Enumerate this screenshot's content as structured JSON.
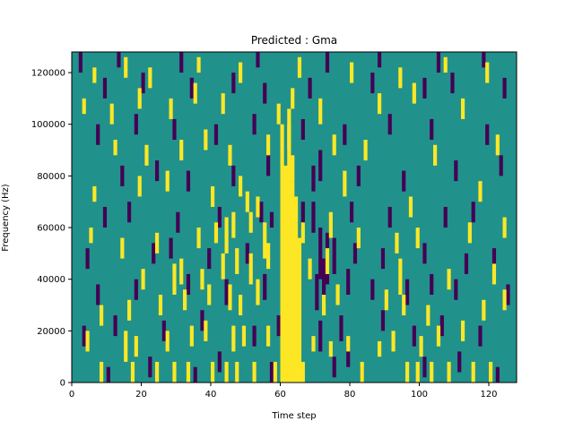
{
  "chart_data": {
    "type": "heatmap",
    "title": "Predicted : Gma",
    "xlabel": "Time step",
    "ylabel": "Frequency (Hz)",
    "xlim": [
      0,
      128
    ],
    "ylim": [
      0,
      128000
    ],
    "x_ticks": [
      0,
      20,
      40,
      60,
      80,
      100,
      120
    ],
    "y_ticks": [
      0,
      20000,
      40000,
      60000,
      80000,
      100000,
      120000
    ],
    "n_time_steps": 128,
    "n_freq_bins": 128,
    "colormap": "viridis",
    "background_level": "mid",
    "colors": {
      "low": "#440154",
      "mid": "#21918c",
      "high": "#fde725"
    },
    "grid": false,
    "colorbar": false,
    "high_cells": [
      [
        8,
        0,
        8
      ],
      [
        17,
        0,
        8
      ],
      [
        24,
        0,
        8
      ],
      [
        29,
        0,
        8
      ],
      [
        33,
        0,
        8
      ],
      [
        40,
        0,
        8
      ],
      [
        44,
        0,
        8
      ],
      [
        47,
        0,
        8
      ],
      [
        52,
        0,
        8
      ],
      [
        58,
        0,
        8
      ],
      [
        61,
        0,
        8
      ],
      [
        66,
        0,
        8
      ],
      [
        83,
        0,
        8
      ],
      [
        96,
        0,
        8
      ],
      [
        99,
        0,
        8
      ],
      [
        103,
        0,
        8
      ],
      [
        108,
        0,
        8
      ],
      [
        115,
        0,
        8
      ],
      [
        120,
        0,
        8
      ],
      [
        4,
        12,
        20
      ],
      [
        15,
        8,
        20
      ],
      [
        18,
        10,
        18
      ],
      [
        27,
        12,
        20
      ],
      [
        34,
        14,
        22
      ],
      [
        38,
        16,
        24
      ],
      [
        46,
        12,
        22
      ],
      [
        49,
        14,
        22
      ],
      [
        56,
        14,
        22
      ],
      [
        69,
        12,
        18
      ],
      [
        74,
        10,
        16
      ],
      [
        79,
        12,
        18
      ],
      [
        88,
        10,
        16
      ],
      [
        92,
        12,
        20
      ],
      [
        100,
        10,
        18
      ],
      [
        105,
        14,
        22
      ],
      [
        112,
        16,
        24
      ],
      [
        8,
        22,
        30
      ],
      [
        16,
        24,
        32
      ],
      [
        25,
        26,
        34
      ],
      [
        32,
        28,
        36
      ],
      [
        39,
        30,
        38
      ],
      [
        45,
        28,
        38
      ],
      [
        48,
        26,
        34
      ],
      [
        53,
        30,
        40
      ],
      [
        72,
        26,
        34
      ],
      [
        76,
        30,
        38
      ],
      [
        90,
        28,
        36
      ],
      [
        95,
        26,
        34
      ],
      [
        102,
        22,
        30
      ],
      [
        118,
        24,
        32
      ],
      [
        124,
        28,
        36
      ],
      [
        20,
        36,
        44
      ],
      [
        29,
        34,
        46
      ],
      [
        31,
        38,
        48
      ],
      [
        37,
        36,
        44
      ],
      [
        43,
        40,
        50
      ],
      [
        47,
        42,
        52
      ],
      [
        51,
        38,
        50
      ],
      [
        56,
        44,
        54
      ],
      [
        68,
        40,
        48
      ],
      [
        73,
        42,
        52
      ],
      [
        94,
        34,
        48
      ],
      [
        108,
        36,
        44
      ],
      [
        121,
        38,
        46
      ],
      [
        5,
        54,
        60
      ],
      [
        14,
        48,
        56
      ],
      [
        24,
        50,
        58
      ],
      [
        36,
        52,
        60
      ],
      [
        41,
        54,
        62
      ],
      [
        44,
        50,
        64
      ],
      [
        46,
        56,
        66
      ],
      [
        51,
        58,
        66
      ],
      [
        55,
        48,
        62
      ],
      [
        66,
        54,
        62
      ],
      [
        74,
        56,
        66
      ],
      [
        82,
        52,
        60
      ],
      [
        93,
        50,
        58
      ],
      [
        99,
        52,
        60
      ],
      [
        114,
        54,
        62
      ],
      [
        124,
        56,
        64
      ],
      [
        6,
        70,
        76
      ],
      [
        19,
        72,
        80
      ],
      [
        27,
        74,
        82
      ],
      [
        40,
        68,
        76
      ],
      [
        48,
        72,
        80
      ],
      [
        50,
        66,
        74
      ],
      [
        53,
        64,
        72
      ],
      [
        78,
        72,
        82
      ],
      [
        97,
        64,
        72
      ],
      [
        117,
        70,
        78
      ],
      [
        12,
        88,
        94
      ],
      [
        21,
        84,
        92
      ],
      [
        31,
        86,
        94
      ],
      [
        38,
        90,
        98
      ],
      [
        45,
        84,
        92
      ],
      [
        56,
        88,
        96
      ],
      [
        62,
        90,
        100
      ],
      [
        75,
        88,
        96
      ],
      [
        84,
        86,
        94
      ],
      [
        104,
        84,
        92
      ],
      [
        122,
        88,
        96
      ],
      [
        3,
        104,
        110
      ],
      [
        11,
        100,
        108
      ],
      [
        19,
        106,
        114
      ],
      [
        28,
        102,
        110
      ],
      [
        35,
        108,
        116
      ],
      [
        43,
        104,
        112
      ],
      [
        59,
        100,
        108
      ],
      [
        63,
        106,
        114
      ],
      [
        71,
        100,
        110
      ],
      [
        88,
        104,
        112
      ],
      [
        98,
        108,
        116
      ],
      [
        112,
        102,
        110
      ],
      [
        6,
        116,
        122
      ],
      [
        15,
        118,
        126
      ],
      [
        22,
        114,
        122
      ],
      [
        36,
        120,
        126
      ],
      [
        48,
        116,
        124
      ],
      [
        65,
        118,
        126
      ],
      [
        80,
        116,
        124
      ],
      [
        94,
        114,
        122
      ],
      [
        107,
        120,
        126
      ],
      [
        119,
        116,
        124
      ],
      [
        60,
        0,
        30
      ],
      [
        60,
        30,
        60
      ],
      [
        60,
        60,
        100
      ],
      [
        61,
        0,
        84
      ],
      [
        62,
        0,
        96
      ],
      [
        62,
        96,
        106
      ],
      [
        63,
        0,
        78
      ],
      [
        63,
        78,
        88
      ],
      [
        64,
        0,
        62
      ],
      [
        64,
        62,
        72
      ],
      [
        65,
        0,
        56
      ]
    ],
    "low_cells": [
      [
        10,
        0,
        6
      ],
      [
        22,
        2,
        10
      ],
      [
        35,
        0,
        6
      ],
      [
        42,
        4,
        12
      ],
      [
        57,
        0,
        8
      ],
      [
        75,
        2,
        10
      ],
      [
        79,
        6,
        14
      ],
      [
        83,
        0,
        6
      ],
      [
        101,
        2,
        10
      ],
      [
        111,
        4,
        12
      ],
      [
        122,
        0,
        6
      ],
      [
        3,
        14,
        22
      ],
      [
        12,
        18,
        26
      ],
      [
        26,
        16,
        24
      ],
      [
        37,
        20,
        28
      ],
      [
        52,
        14,
        22
      ],
      [
        59,
        18,
        26
      ],
      [
        71,
        12,
        24
      ],
      [
        77,
        16,
        26
      ],
      [
        89,
        20,
        28
      ],
      [
        98,
        14,
        22
      ],
      [
        106,
        18,
        26
      ],
      [
        117,
        14,
        22
      ],
      [
        7,
        30,
        38
      ],
      [
        18,
        32,
        40
      ],
      [
        33,
        34,
        42
      ],
      [
        44,
        30,
        40
      ],
      [
        55,
        32,
        42
      ],
      [
        70,
        28,
        42
      ],
      [
        72,
        30,
        48
      ],
      [
        79,
        34,
        44
      ],
      [
        86,
        32,
        40
      ],
      [
        96,
        30,
        40
      ],
      [
        103,
        34,
        42
      ],
      [
        110,
        32,
        40
      ],
      [
        125,
        30,
        38
      ],
      [
        4,
        44,
        52
      ],
      [
        23,
        46,
        54
      ],
      [
        28,
        48,
        56
      ],
      [
        39,
        44,
        52
      ],
      [
        50,
        46,
        54
      ],
      [
        71,
        40,
        60
      ],
      [
        73,
        38,
        58
      ],
      [
        75,
        42,
        56
      ],
      [
        81,
        46,
        54
      ],
      [
        89,
        44,
        52
      ],
      [
        101,
        46,
        54
      ],
      [
        113,
        42,
        50
      ],
      [
        121,
        44,
        52
      ],
      [
        9,
        60,
        68
      ],
      [
        16,
        62,
        70
      ],
      [
        30,
        58,
        66
      ],
      [
        42,
        60,
        68
      ],
      [
        54,
        62,
        70
      ],
      [
        57,
        60,
        66
      ],
      [
        66,
        60,
        70
      ],
      [
        69,
        58,
        70
      ],
      [
        80,
        62,
        70
      ],
      [
        91,
        60,
        68
      ],
      [
        107,
        60,
        68
      ],
      [
        115,
        62,
        70
      ],
      [
        14,
        76,
        84
      ],
      [
        24,
        78,
        86
      ],
      [
        33,
        74,
        82
      ],
      [
        46,
        76,
        84
      ],
      [
        56,
        80,
        88
      ],
      [
        69,
        74,
        84
      ],
      [
        71,
        78,
        90
      ],
      [
        82,
        76,
        84
      ],
      [
        95,
        74,
        82
      ],
      [
        110,
        78,
        86
      ],
      [
        123,
        80,
        88
      ],
      [
        7,
        92,
        100
      ],
      [
        18,
        96,
        104
      ],
      [
        29,
        94,
        102
      ],
      [
        41,
        92,
        100
      ],
      [
        52,
        96,
        104
      ],
      [
        66,
        94,
        102
      ],
      [
        78,
        92,
        100
      ],
      [
        91,
        96,
        104
      ],
      [
        103,
        94,
        102
      ],
      [
        119,
        92,
        100
      ],
      [
        9,
        110,
        118
      ],
      [
        20,
        112,
        120
      ],
      [
        34,
        110,
        118
      ],
      [
        46,
        112,
        120
      ],
      [
        55,
        108,
        116
      ],
      [
        68,
        110,
        118
      ],
      [
        86,
        112,
        120
      ],
      [
        101,
        110,
        118
      ],
      [
        109,
        112,
        120
      ],
      [
        124,
        110,
        118
      ],
      [
        2,
        120,
        128
      ],
      [
        13,
        122,
        128
      ],
      [
        31,
        120,
        128
      ],
      [
        53,
        122,
        128
      ],
      [
        73,
        120,
        128
      ],
      [
        88,
        122,
        128
      ],
      [
        105,
        120,
        128
      ],
      [
        118,
        122,
        128
      ]
    ]
  }
}
